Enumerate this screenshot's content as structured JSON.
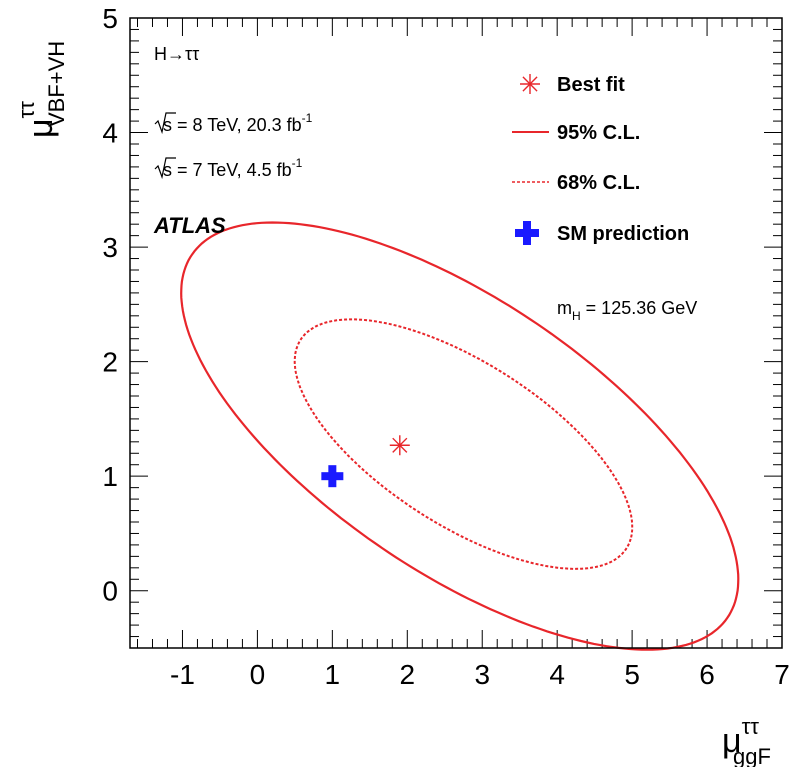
{
  "chart_data": {
    "type": "scatter",
    "title": "",
    "xlabel": "μ",
    "xlabel_sup": "ττ",
    "xlabel_sub": "ggF",
    "ylabel": "μ",
    "ylabel_sup": "ττ",
    "ylabel_sub": "VBF+VH",
    "xlim": [
      -1.7,
      7
    ],
    "ylim": [
      -0.5,
      5
    ],
    "xticks": [
      -1,
      0,
      1,
      2,
      3,
      4,
      5,
      6,
      7
    ],
    "yticks": [
      0,
      1,
      2,
      3,
      4,
      5
    ],
    "xtick_labels": [
      "-1",
      "0",
      "1",
      "2",
      "3",
      "4",
      "5",
      "6",
      "7"
    ],
    "ytick_labels": [
      "0",
      "1",
      "2",
      "3",
      "4",
      "5"
    ],
    "grid": false,
    "legend_position": "top-right",
    "best_fit": {
      "x": 1.9,
      "y": 1.27,
      "color": "#e8262b"
    },
    "sm_prediction": {
      "x": 1.0,
      "y": 1.0,
      "color": "#1a1aff"
    },
    "contours": [
      {
        "name": "95% C.L.",
        "style": "solid",
        "color": "#e8262b",
        "center": [
          2.7,
          1.35
        ],
        "semi_axes": [
          3.95,
          1.3
        ],
        "angle_deg": -21
      },
      {
        "name": "68% C.L.",
        "style": "dashed",
        "color": "#e8262b",
        "center": [
          2.75,
          1.28
        ],
        "semi_axes": [
          2.38,
          0.77
        ],
        "angle_deg": -20
      }
    ],
    "legend": [
      {
        "marker": "star",
        "label": "Best fit"
      },
      {
        "marker": "solid-line",
        "label": "95% C.L."
      },
      {
        "marker": "dashed-line",
        "label": "68% C.L."
      },
      {
        "marker": "cross",
        "label": "SM prediction"
      }
    ],
    "annotations": {
      "process": "H→ττ",
      "lumi8_pre": "s = 8 TeV, 20.3 fb",
      "lumi8_sup": "-1",
      "lumi7_pre": "s = 7 TeV, 4.5 fb",
      "lumi7_sup": "-1",
      "experiment": "ATLAS",
      "mass_m": "m",
      "mass_sub": "H",
      "mass_value": " = 125.36 GeV"
    }
  }
}
